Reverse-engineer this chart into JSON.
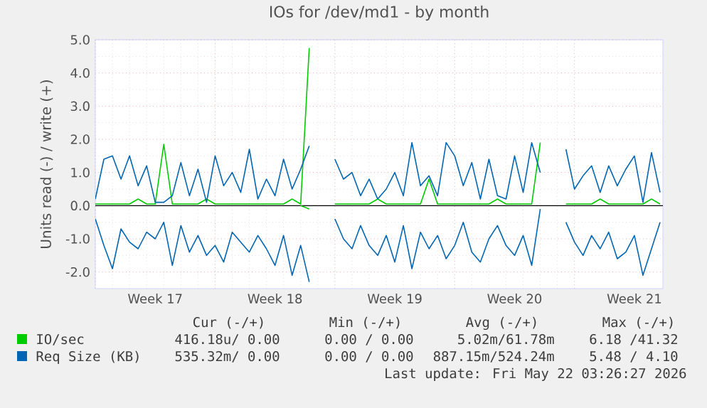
{
  "chart_data": {
    "type": "line",
    "title": "IOs for /dev/md1 - by month",
    "ylabel": "Units read (-) / write (+)",
    "x": [
      "2026-04-20T00:00",
      "2026-04-20T12:00",
      "2026-04-21T00:00",
      "2026-04-21T12:00",
      "2026-04-22T00:00",
      "2026-04-22T12:00",
      "2026-04-23T00:00",
      "2026-04-23T12:00",
      "2026-04-24T00:00",
      "2026-04-24T12:00",
      "2026-04-25T00:00",
      "2026-04-25T12:00",
      "2026-04-26T00:00",
      "2026-04-26T12:00",
      "2026-04-27T00:00",
      "2026-04-27T12:00",
      "2026-04-28T00:00",
      "2026-04-28T12:00",
      "2026-04-29T00:00",
      "2026-04-29T12:00",
      "2026-04-30T00:00",
      "2026-04-30T12:00",
      "2026-05-01T00:00",
      "2026-05-01T12:00",
      "2026-05-02T00:00",
      "2026-05-02T12:00",
      "2026-05-03T00:00",
      "2026-05-03T12:00",
      "2026-05-04T00:00",
      "2026-05-04T12:00",
      "2026-05-05T00:00",
      "2026-05-05T12:00",
      "2026-05-06T00:00",
      "2026-05-06T12:00",
      "2026-05-07T00:00",
      "2026-05-07T12:00",
      "2026-05-08T00:00",
      "2026-05-08T12:00",
      "2026-05-09T00:00",
      "2026-05-09T12:00",
      "2026-05-10T00:00",
      "2026-05-10T12:00",
      "2026-05-11T00:00",
      "2026-05-11T12:00",
      "2026-05-12T00:00",
      "2026-05-12T12:00",
      "2026-05-13T00:00",
      "2026-05-13T12:00",
      "2026-05-14T00:00",
      "2026-05-14T12:00",
      "2026-05-15T00:00",
      "2026-05-15T12:00",
      "2026-05-16T00:00",
      "2026-05-16T12:00",
      "2026-05-17T00:00",
      "2026-05-17T12:00",
      "2026-05-18T00:00",
      "2026-05-18T12:00",
      "2026-05-19T00:00",
      "2026-05-19T12:00",
      "2026-05-20T00:00",
      "2026-05-20T12:00",
      "2026-05-21T00:00",
      "2026-05-21T12:00",
      "2026-05-22T00:00",
      "2026-05-22T12:00",
      "2026-05-23T00:00"
    ],
    "series": [
      {
        "name": "IO/sec",
        "color": "#00cc00",
        "values": [
          0.05,
          0.05,
          0.05,
          0.05,
          0.05,
          0.2,
          0.05,
          0.05,
          1.85,
          0.05,
          0.05,
          0.05,
          0.05,
          0.2,
          0.05,
          0.05,
          0.05,
          0.05,
          0.05,
          0.05,
          0.05,
          0.05,
          0.05,
          0.2,
          0.05,
          4.75,
          null,
          null,
          0.05,
          0.05,
          0.05,
          0.05,
          0.05,
          0.2,
          0.05,
          0.05,
          0.05,
          0.05,
          0.05,
          0.8,
          0.05,
          0.05,
          0.05,
          0.05,
          0.05,
          0.05,
          0.05,
          0.2,
          0.05,
          0.05,
          0.05,
          0.05,
          1.9,
          null,
          null,
          0.05,
          0.05,
          0.05,
          0.05,
          0.2,
          0.05,
          0.05,
          0.05,
          0.05,
          0.05,
          0.2,
          0.05
        ]
      },
      {
        "color": "#00cc00",
        "values": [
          null,
          null,
          null,
          null,
          null,
          null,
          null,
          null,
          null,
          null,
          null,
          null,
          null,
          null,
          null,
          null,
          null,
          null,
          null,
          null,
          null,
          null,
          null,
          null,
          0,
          -0.1,
          null,
          null,
          null,
          null,
          null,
          null,
          null,
          null,
          null,
          null,
          null,
          null,
          null,
          null,
          null,
          null,
          null,
          null,
          null,
          null,
          null,
          null,
          null,
          null,
          null,
          null,
          null,
          null,
          null,
          null,
          null,
          null,
          null,
          null,
          null,
          null,
          null,
          null,
          null,
          null,
          null
        ]
      },
      {
        "name": "Req Size (KB)",
        "color": "#0066b3",
        "values": [
          0.2,
          1.4,
          1.5,
          0.8,
          1.5,
          0.6,
          1.2,
          0.1,
          0.1,
          0.3,
          1.3,
          0.3,
          1.1,
          0.1,
          1.5,
          0.6,
          1.0,
          0.4,
          1.7,
          0.2,
          0.8,
          0.3,
          1.4,
          0.5,
          1.1,
          1.8,
          null,
          null,
          1.4,
          0.8,
          1.0,
          0.3,
          0.8,
          0.2,
          0.5,
          1.0,
          0.3,
          1.9,
          0.6,
          0.9,
          0.3,
          1.9,
          1.5,
          0.6,
          1.3,
          0.2,
          1.4,
          0.3,
          0.2,
          1.5,
          0.4,
          1.9,
          1.0,
          null,
          null,
          1.7,
          0.5,
          0.9,
          1.2,
          0.4,
          1.2,
          0.6,
          1.1,
          1.5,
          0.1,
          1.6,
          0.4
        ]
      },
      {
        "color": "#0066b3",
        "values": [
          -0.4,
          -1.2,
          -1.9,
          -0.7,
          -1.1,
          -1.3,
          -0.8,
          -1.0,
          -0.5,
          -1.8,
          -0.6,
          -1.4,
          -0.9,
          -1.5,
          -1.2,
          -1.7,
          -0.8,
          -1.1,
          -1.4,
          -0.9,
          -1.3,
          -1.8,
          -0.9,
          -2.1,
          -1.2,
          -2.3,
          null,
          null,
          -0.4,
          -1.0,
          -1.3,
          -0.6,
          -1.2,
          -1.5,
          -0.9,
          -1.7,
          -0.6,
          -1.9,
          -0.8,
          -1.3,
          -0.9,
          -1.6,
          -1.2,
          -0.5,
          -1.4,
          -1.7,
          -1.0,
          -0.6,
          -1.2,
          -1.5,
          -0.9,
          -1.8,
          -0.1,
          null,
          null,
          -0.5,
          -1.1,
          -1.5,
          -0.9,
          -1.3,
          -0.8,
          -1.6,
          -1.4,
          -0.9,
          -2.1,
          -1.3,
          -0.5
        ]
      }
    ],
    "xlim": [
      "2026-04-20T00:00",
      "2026-05-23T04:00"
    ],
    "xticks": [
      {
        "value": "2026-04-20",
        "label": null
      },
      {
        "value": "2026-04-27",
        "label": null
      },
      {
        "value": "2026-05-04",
        "label": null
      },
      {
        "value": "2026-05-11",
        "label": null
      },
      {
        "value": "2026-05-18",
        "label": null
      },
      {
        "value": "2026-04-23T12:00",
        "label": "Week 17"
      },
      {
        "value": "2026-04-30T12:00",
        "label": "Week 18"
      },
      {
        "value": "2026-05-07T12:00",
        "label": "Week 19"
      },
      {
        "value": "2026-05-14T12:00",
        "label": "Week 20"
      },
      {
        "value": "2026-05-21T12:00",
        "label": "Week 21"
      }
    ],
    "ylim": [
      -2.5,
      5.0
    ],
    "yticks": [
      {
        "value": -2,
        "label": "-2.0"
      },
      {
        "value": -1,
        "label": "-1.0"
      },
      {
        "value": 0,
        "label": "0.0"
      },
      {
        "value": 1,
        "label": "1.0"
      },
      {
        "value": 2,
        "label": "2.0"
      },
      {
        "value": 3,
        "label": "3.0"
      },
      {
        "value": 4,
        "label": "4.0"
      },
      {
        "value": 5,
        "label": "5.0"
      }
    ],
    "ref_lines": [
      {
        "axis": "y",
        "value": 0,
        "color": "#000000"
      }
    ],
    "grid": true,
    "legend": "bottom",
    "marker": "none",
    "line_style": "solid",
    "annotations": [
      "Cur (-/+)",
      "Min (-/+)",
      "Avg (-/+)",
      "Max (-/+)",
      "416.18u/ 0.00",
      "0.00 / 0.00",
      "5.02m/61.78m",
      "6.18 /41.32",
      "535.32m/ 0.00",
      "0.00 / 0.00",
      "887.15m/524.24m",
      "5.48 / 4.10",
      "Last update: Fri May 22 03:26:27 2026"
    ]
  }
}
